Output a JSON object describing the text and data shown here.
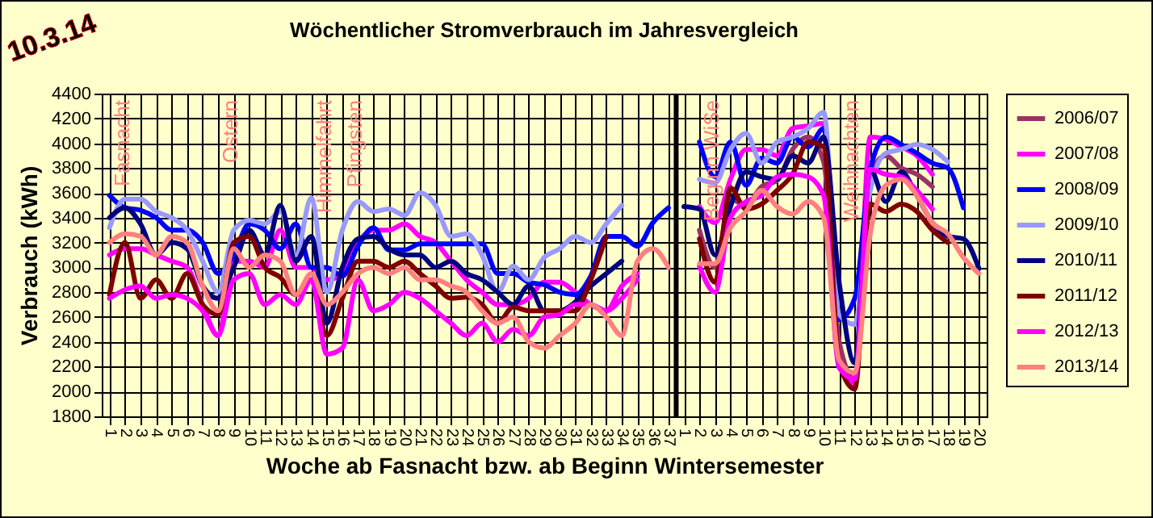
{
  "chart_data": {
    "type": "line",
    "title": "Wöchentlicher Stromverbrauch im Jahresvergleich",
    "xlabel": "Woche ab Fasnacht bzw. ab Beginn Wintersemester",
    "ylabel": "Verbrauch (kWh)",
    "annotations": [
      "10.3.14",
      "Fasnacht",
      "Ostern",
      "Himmelfahrt",
      "Pfingsten",
      "Beginn WiSe",
      "Weihnachten"
    ],
    "categories": [
      "1",
      "2",
      "3",
      "4",
      "5",
      "6",
      "7",
      "8",
      "9",
      "10",
      "11",
      "12",
      "13",
      "14",
      "15",
      "16",
      "17",
      "18",
      "19",
      "20",
      "21",
      "22",
      "23",
      "24",
      "25",
      "26",
      "27",
      "28",
      "29",
      "30",
      "31",
      "32",
      "33",
      "34",
      "35",
      "36",
      "37",
      "1",
      "2",
      "3",
      "4",
      "5",
      "6",
      "7",
      "8",
      "9",
      "10",
      "11",
      "12",
      "13",
      "14",
      "15",
      "16",
      "17",
      "18",
      "19",
      "20"
    ],
    "series": [
      {
        "name": "2006/07",
        "color": "#993366",
        "values": [
          null,
          null,
          null,
          null,
          null,
          null,
          null,
          null,
          null,
          null,
          null,
          null,
          null,
          null,
          null,
          null,
          null,
          null,
          null,
          null,
          null,
          null,
          null,
          null,
          null,
          null,
          null,
          null,
          null,
          null,
          null,
          null,
          null,
          null,
          null,
          null,
          null,
          null,
          3300,
          3000,
          3550,
          3500,
          3650,
          3700,
          3950,
          4050,
          3850,
          2400,
          2100,
          3750,
          3900,
          3800,
          3750,
          3650,
          null,
          null,
          null
        ]
      },
      {
        "name": "2007/08",
        "color": "#ff00ff",
        "values": [
          3100,
          3150,
          3150,
          3100,
          3050,
          3000,
          2700,
          2450,
          3050,
          3050,
          3000,
          3300,
          3000,
          3000,
          2900,
          2950,
          3200,
          3300,
          3300,
          3350,
          3250,
          3200,
          3050,
          2900,
          2800,
          2700,
          2700,
          2750,
          2880,
          2880,
          2800,
          2700,
          2650,
          2750,
          2900,
          null,
          null,
          null,
          3490,
          3360,
          3710,
          3950,
          3950,
          3900,
          4120,
          4140,
          4160,
          2230,
          2060,
          4050,
          4030,
          3970,
          3900,
          3750,
          null,
          null,
          null
        ]
      },
      {
        "name": "2008/09",
        "color": "#0000ff",
        "values": [
          3580,
          3480,
          3460,
          3400,
          3300,
          3300,
          3200,
          2950,
          3100,
          3350,
          3300,
          3150,
          3350,
          3000,
          3000,
          2930,
          3170,
          3320,
          3140,
          3140,
          3190,
          3190,
          3190,
          3190,
          3190,
          2950,
          2950,
          2880,
          2860,
          2800,
          2780,
          2930,
          3250,
          3250,
          3170,
          3360,
          3480,
          null,
          4010,
          3730,
          4010,
          3660,
          3880,
          3840,
          4050,
          3970,
          4120,
          2580,
          2750,
          3790,
          4050,
          3990,
          3920,
          3840,
          3800,
          3480,
          null
        ]
      },
      {
        "name": "2009/10",
        "color": "#9999ff",
        "values": [
          3320,
          3550,
          3550,
          3450,
          3400,
          3300,
          3050,
          2800,
          3300,
          3380,
          3350,
          3450,
          3100,
          3560,
          2800,
          3300,
          3530,
          3450,
          3470,
          3420,
          3600,
          3500,
          3250,
          3270,
          3100,
          2800,
          3010,
          2900,
          3080,
          3150,
          3250,
          3200,
          3350,
          3500,
          null,
          null,
          null,
          null,
          3710,
          3680,
          3950,
          4080,
          3840,
          4010,
          4050,
          4120,
          4250,
          2620,
          2540,
          3620,
          3920,
          3950,
          3990,
          3950,
          3850,
          null,
          null
        ]
      },
      {
        "name": "2010/11",
        "color": "#000080",
        "values": [
          3400,
          3480,
          3350,
          3100,
          3200,
          3150,
          2850,
          2750,
          3000,
          3300,
          3100,
          3500,
          3050,
          3250,
          2550,
          3000,
          3230,
          3250,
          3150,
          3100,
          3100,
          3000,
          3050,
          2950,
          2900,
          2800,
          2700,
          2850,
          2650,
          2650,
          2720,
          2850,
          2950,
          3050,
          null,
          null,
          null,
          3490,
          3470,
          3100,
          3490,
          3770,
          3730,
          3710,
          3900,
          3840,
          4050,
          2880,
          2230,
          3790,
          3530,
          3770,
          3580,
          3360,
          3250,
          3230,
          2990
        ]
      },
      {
        "name": "2011/12",
        "color": "#800000",
        "values": [
          2780,
          3200,
          2750,
          2900,
          2750,
          2950,
          2700,
          2620,
          3200,
          3250,
          3000,
          2920,
          2780,
          2900,
          2450,
          2750,
          3050,
          3050,
          3000,
          3050,
          2950,
          2850,
          2750,
          2760,
          2700,
          2550,
          2680,
          2650,
          2650,
          2650,
          2650,
          2900,
          3250,
          null,
          null,
          null,
          null,
          null,
          3230,
          2880,
          3640,
          3470,
          3510,
          3620,
          3750,
          4010,
          3970,
          2230,
          2020,
          3510,
          3450,
          3510,
          3450,
          3300,
          3200,
          null,
          null
        ]
      },
      {
        "name": "2012/13",
        "color": "#ff00ff",
        "values": [
          2750,
          2820,
          2850,
          2750,
          2780,
          2750,
          2650,
          2450,
          2900,
          2950,
          2700,
          2780,
          2700,
          2900,
          2300,
          2350,
          2900,
          2650,
          2700,
          2800,
          2750,
          2650,
          2550,
          2450,
          2550,
          2400,
          2500,
          2450,
          2600,
          2620,
          2700,
          2700,
          2650,
          2850,
          2950,
          null,
          null,
          null,
          3010,
          2800,
          3400,
          3530,
          3580,
          3730,
          3750,
          3730,
          3580,
          2190,
          2100,
          3790,
          3750,
          3730,
          3620,
          3470,
          null,
          null,
          null
        ]
      },
      {
        "name": "2013/14",
        "color": "#ff8080",
        "values": [
          3200,
          3270,
          3250,
          3100,
          3250,
          3200,
          2850,
          2650,
          3150,
          3000,
          3100,
          3050,
          2780,
          2950,
          2700,
          2800,
          2950,
          3000,
          2950,
          3000,
          2900,
          2900,
          2850,
          2800,
          2650,
          2550,
          2600,
          2400,
          2350,
          2450,
          2550,
          2700,
          2600,
          2450,
          3050,
          3150,
          3000,
          null,
          3030,
          3030,
          3320,
          3450,
          3620,
          3490,
          3430,
          3530,
          3400,
          2250,
          2150,
          3270,
          3660,
          3710,
          3580,
          3360,
          3270,
          3080,
          2950
        ]
      }
    ],
    "ylim": [
      1800,
      4400
    ],
    "yticks": [
      1800,
      2000,
      2200,
      2400,
      2600,
      2800,
      3000,
      3200,
      3400,
      3600,
      3800,
      4000,
      4200,
      4400
    ],
    "ref_lines": [
      {
        "axis": "x",
        "value": "37",
        "color": "#000000"
      }
    ],
    "grid": true,
    "legend": "right"
  }
}
